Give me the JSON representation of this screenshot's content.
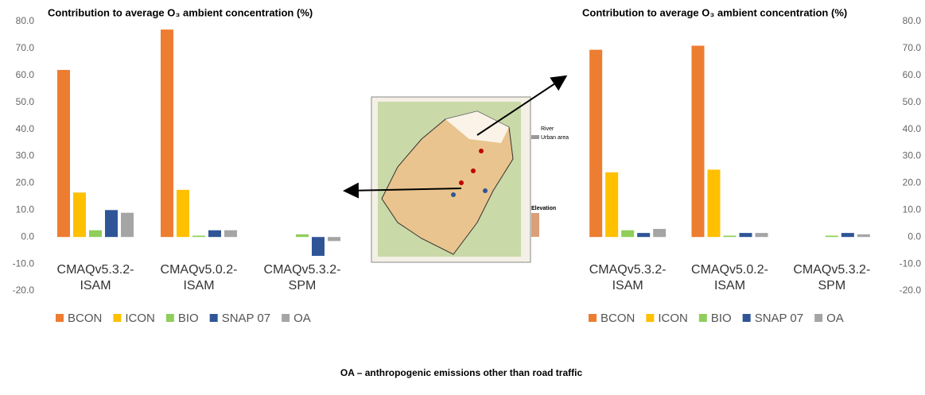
{
  "chart_data": [
    {
      "type": "bar",
      "title": "Contribution to average O₃ ambient concentration (%)",
      "categories": [
        "CMAQv5.3.2-ISAM",
        "CMAQv5.0.2-ISAM",
        "CMAQv5.3.2-SPM"
      ],
      "series": [
        {
          "name": "BCON",
          "color": "#ed7d31",
          "values": [
            62,
            77,
            0
          ]
        },
        {
          "name": "ICON",
          "color": "#ffc000",
          "values": [
            16.5,
            17.5,
            0
          ]
        },
        {
          "name": "BIO",
          "color": "#8fce5a",
          "values": [
            2.5,
            0.5,
            1
          ]
        },
        {
          "name": "SNAP 07",
          "color": "#2f5597",
          "values": [
            10,
            2.5,
            -7
          ]
        },
        {
          "name": "OA",
          "color": "#a5a5a5",
          "values": [
            9,
            2.5,
            -1.5
          ]
        }
      ],
      "ylim": [
        -20,
        80
      ],
      "yticks": [
        {
          "value": -20,
          "label": "-20.0"
        },
        {
          "value": -10,
          "label": "-10.0"
        },
        {
          "value": 0,
          "label": "0.0"
        },
        {
          "value": 10,
          "label": "10.0"
        },
        {
          "value": 20,
          "label": "20.0"
        },
        {
          "value": 30,
          "label": "30.0"
        },
        {
          "value": 40,
          "label": "40.0"
        },
        {
          "value": 50,
          "label": "50.0"
        },
        {
          "value": 60,
          "label": "60.0"
        },
        {
          "value": 70,
          "label": "70.0"
        },
        {
          "value": 80,
          "label": "80.0"
        }
      ],
      "y_axis_side": "left",
      "legend": "bottom"
    },
    {
      "type": "bar",
      "title": "Contribution to average O₃ ambient concentration (%)",
      "categories": [
        "CMAQv5.3.2-ISAM",
        "CMAQv5.0.2-ISAM",
        "CMAQv5.3.2-SPM"
      ],
      "series": [
        {
          "name": "BCON",
          "color": "#ed7d31",
          "values": [
            69.5,
            71,
            0
          ]
        },
        {
          "name": "ICON",
          "color": "#ffc000",
          "values": [
            24,
            25,
            0
          ]
        },
        {
          "name": "BIO",
          "color": "#8fce5a",
          "values": [
            2.5,
            0.5,
            0.5
          ]
        },
        {
          "name": "SNAP 07",
          "color": "#2f5597",
          "values": [
            1.5,
            1.5,
            1.5
          ]
        },
        {
          "name": "OA",
          "color": "#a5a5a5",
          "values": [
            3,
            1.5,
            1
          ]
        }
      ],
      "ylim": [
        -20,
        80
      ],
      "yticks": [
        {
          "value": -20,
          "label": "-20.0"
        },
        {
          "value": -10,
          "label": "-10.0"
        },
        {
          "value": 0,
          "label": "0.0"
        },
        {
          "value": 10,
          "label": "10.0"
        },
        {
          "value": 20,
          "label": "20.0"
        },
        {
          "value": 30,
          "label": "30.0"
        },
        {
          "value": 40,
          "label": "40.0"
        },
        {
          "value": 50,
          "label": "50.0"
        },
        {
          "value": 60,
          "label": "60.0"
        },
        {
          "value": 70,
          "label": "70.0"
        },
        {
          "value": 80,
          "label": "80.0"
        }
      ],
      "y_axis_side": "right",
      "legend": "bottom"
    }
  ],
  "map": {
    "legend": [
      "River",
      "Urban area",
      "Elevation"
    ]
  },
  "caption": "OA – anthropogenic emissions other than road traffic"
}
